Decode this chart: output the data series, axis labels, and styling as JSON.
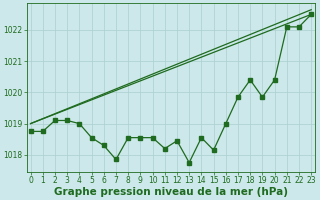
{
  "bg_color": "#cce8ea",
  "line_color": "#1f6b1f",
  "grid_color": "#aacfcf",
  "xlabel": "Graphe pression niveau de la mer (hPa)",
  "xlim": [
    -0.3,
    23.3
  ],
  "ylim": [
    1017.45,
    1022.85
  ],
  "yticks": [
    1018,
    1019,
    1020,
    1021,
    1022
  ],
  "xticks": [
    0,
    1,
    2,
    3,
    4,
    5,
    6,
    7,
    8,
    9,
    10,
    11,
    12,
    13,
    14,
    15,
    16,
    17,
    18,
    19,
    20,
    21,
    22,
    23
  ],
  "line1": {
    "x": [
      0,
      1,
      2,
      3,
      4,
      5,
      6,
      7,
      8,
      9,
      10,
      11,
      12,
      13,
      14,
      15,
      16,
      17,
      18,
      19,
      20,
      21,
      22,
      23
    ],
    "y": [
      1018.75,
      1018.75,
      1019.1,
      1019.1,
      1019.0,
      1018.55,
      1018.3,
      1017.85,
      1018.55,
      1018.55,
      1018.55,
      1018.2,
      1018.45,
      1017.75,
      1018.55,
      1018.15,
      1019.0,
      1019.85,
      1020.4,
      1019.85,
      1020.4,
      1022.1,
      1022.1,
      1022.5
    ]
  },
  "line2": {
    "x": [
      0,
      23
    ],
    "y": [
      1019.0,
      1022.5
    ]
  },
  "line3": {
    "x": [
      0,
      23
    ],
    "y": [
      1019.0,
      1022.65
    ]
  },
  "marker_size": 2.2,
  "linewidth": 0.9,
  "xlabel_fontsize": 7.5,
  "tick_fontsize": 5.5
}
